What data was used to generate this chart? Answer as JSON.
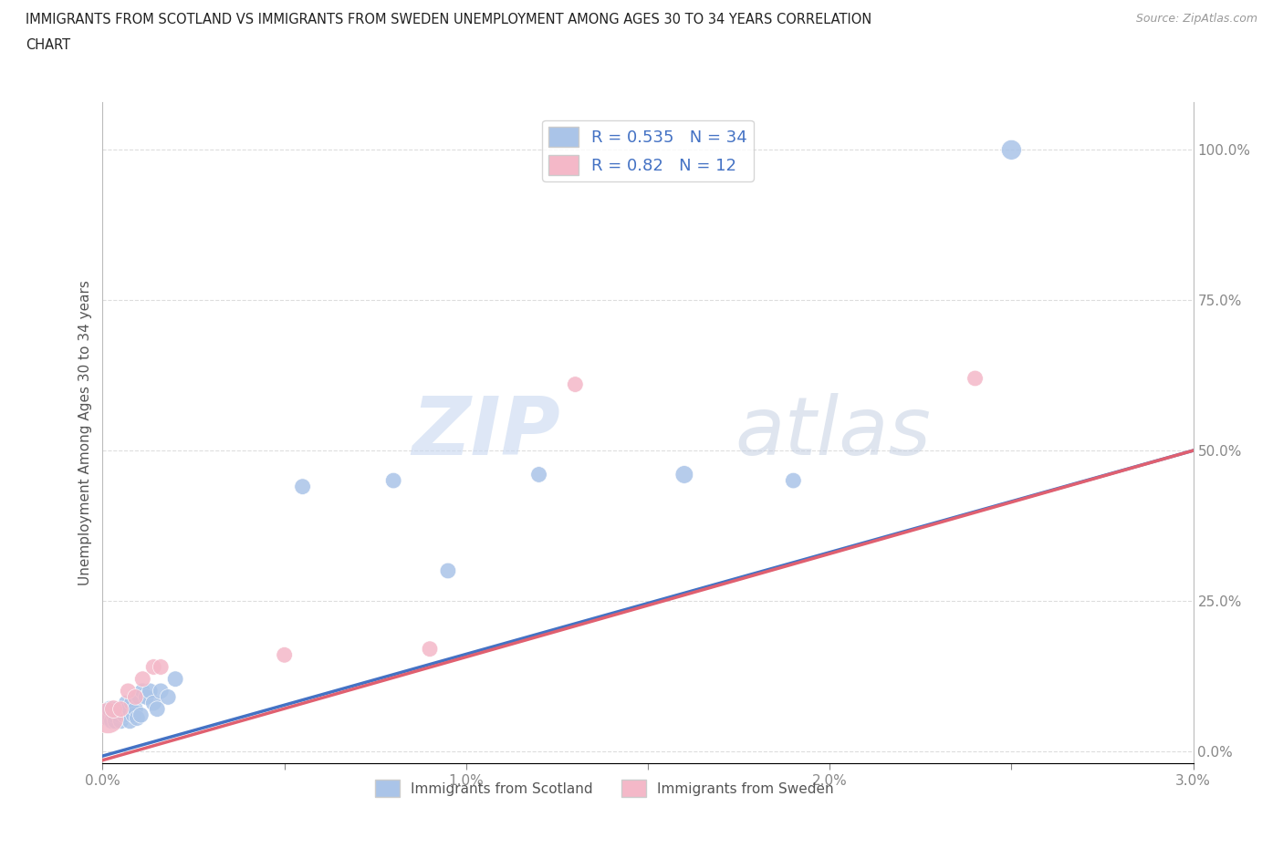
{
  "title_line1": "IMMIGRANTS FROM SCOTLAND VS IMMIGRANTS FROM SWEDEN UNEMPLOYMENT AMONG AGES 30 TO 34 YEARS CORRELATION",
  "title_line2": "CHART",
  "source": "Source: ZipAtlas.com",
  "ylabel": "Unemployment Among Ages 30 to 34 years",
  "xlim": [
    0,
    0.03
  ],
  "ylim": [
    -0.02,
    1.08
  ],
  "xticks": [
    0.0,
    0.005,
    0.01,
    0.015,
    0.02,
    0.025,
    0.03
  ],
  "yticks": [
    0.0,
    0.25,
    0.5,
    0.75,
    1.0
  ],
  "grid_color": "#dddddd",
  "background_color": "#ffffff",
  "scotland_color": "#aac4e8",
  "sweden_color": "#f4b8c8",
  "scotland_line_color": "#4472c4",
  "sweden_line_color": "#e06070",
  "scotland_R": 0.535,
  "scotland_N": 34,
  "sweden_R": 0.82,
  "sweden_N": 12,
  "watermark_zip": "ZIP",
  "watermark_atlas": "atlas",
  "scotland_points_x": [
    0.00015,
    0.0002,
    0.00025,
    0.0003,
    0.00035,
    0.0004,
    0.00045,
    0.0005,
    0.00055,
    0.0006,
    0.00065,
    0.0007,
    0.00075,
    0.0008,
    0.00085,
    0.0009,
    0.00095,
    0.001,
    0.00105,
    0.0011,
    0.0012,
    0.0013,
    0.0014,
    0.0015,
    0.0016,
    0.0018,
    0.002,
    0.0055,
    0.008,
    0.0095,
    0.012,
    0.016,
    0.019,
    0.025
  ],
  "scotland_points_y": [
    0.06,
    0.07,
    0.05,
    0.06,
    0.05,
    0.07,
    0.06,
    0.05,
    0.07,
    0.06,
    0.08,
    0.07,
    0.05,
    0.08,
    0.06,
    0.07,
    0.055,
    0.09,
    0.06,
    0.1,
    0.09,
    0.1,
    0.08,
    0.07,
    0.1,
    0.09,
    0.12,
    0.44,
    0.45,
    0.3,
    0.46,
    0.46,
    0.45,
    1.0
  ],
  "scotland_sizes": [
    300,
    180,
    160,
    160,
    160,
    160,
    160,
    160,
    160,
    160,
    160,
    160,
    160,
    160,
    160,
    160,
    160,
    160,
    160,
    160,
    160,
    160,
    160,
    160,
    160,
    160,
    160,
    160,
    160,
    160,
    160,
    200,
    160,
    250
  ],
  "sweden_points_x": [
    0.00015,
    0.0003,
    0.0005,
    0.0007,
    0.0009,
    0.0011,
    0.0014,
    0.0016,
    0.005,
    0.009,
    0.013,
    0.024
  ],
  "sweden_points_y": [
    0.055,
    0.07,
    0.07,
    0.1,
    0.09,
    0.12,
    0.14,
    0.14,
    0.16,
    0.17,
    0.61,
    0.62
  ],
  "sweden_sizes": [
    600,
    200,
    160,
    160,
    160,
    160,
    160,
    160,
    160,
    160,
    160,
    160
  ],
  "sc_line_x0": 0.0,
  "sc_line_y0": -0.008,
  "sc_line_x1": 0.03,
  "sc_line_y1": 0.5,
  "sw_line_x0": 0.0,
  "sw_line_y0": -0.015,
  "sw_line_x1": 0.03,
  "sw_line_y1": 0.5
}
